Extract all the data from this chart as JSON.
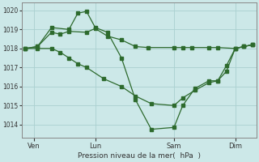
{
  "bg_color": "#cce8e8",
  "grid_color": "#aad0d0",
  "line_color": "#2d6a2d",
  "xlabel": "Pression niveau de la mer(  hPa  )",
  "ylim": [
    1013.3,
    1020.4
  ],
  "yticks": [
    1014,
    1015,
    1016,
    1017,
    1018,
    1019,
    1020
  ],
  "xtick_labels": [
    "Ven",
    "Lun",
    "Sam",
    "Dim"
  ],
  "xtick_positions": [
    0.5,
    4.0,
    8.5,
    12.0
  ],
  "series1_x": [
    0.0,
    0.7,
    1.5,
    2.0,
    2.5,
    3.5,
    4.0,
    4.7,
    5.5,
    6.3,
    7.0,
    8.5,
    9.0,
    9.5,
    10.5,
    11.0,
    12.0,
    12.5,
    13.0
  ],
  "series1_y": [
    1018.0,
    1018.1,
    1018.85,
    1018.75,
    1018.9,
    1018.85,
    1019.05,
    1018.65,
    1018.45,
    1018.1,
    1018.05,
    1018.05,
    1018.05,
    1018.05,
    1018.05,
    1018.05,
    1018.0,
    1018.1,
    1018.2
  ],
  "series2_x": [
    0.0,
    0.7,
    1.5,
    2.5,
    3.0,
    3.5,
    4.0,
    4.7,
    5.5,
    6.3,
    7.2,
    8.5,
    9.0,
    9.7,
    10.5,
    11.0,
    11.5,
    12.0,
    12.5,
    13.0
  ],
  "series2_y": [
    1018.0,
    1018.1,
    1019.1,
    1019.0,
    1019.85,
    1019.95,
    1019.1,
    1018.85,
    1017.5,
    1015.3,
    1013.75,
    1013.85,
    1015.0,
    1015.9,
    1016.3,
    1016.3,
    1017.1,
    1018.0,
    1018.1,
    1018.2
  ],
  "series3_x": [
    0.0,
    0.7,
    1.5,
    2.0,
    2.5,
    3.0,
    3.5,
    4.5,
    5.5,
    6.3,
    7.2,
    8.5,
    9.0,
    9.7,
    10.5,
    11.0,
    11.5,
    12.0,
    12.5,
    13.0
  ],
  "series3_y": [
    1018.0,
    1018.0,
    1018.0,
    1017.8,
    1017.5,
    1017.2,
    1017.0,
    1016.4,
    1016.0,
    1015.5,
    1015.1,
    1015.0,
    1015.4,
    1015.8,
    1016.2,
    1016.3,
    1016.8,
    1018.0,
    1018.1,
    1018.2
  ],
  "figsize": [
    3.2,
    2.0
  ],
  "dpi": 100
}
